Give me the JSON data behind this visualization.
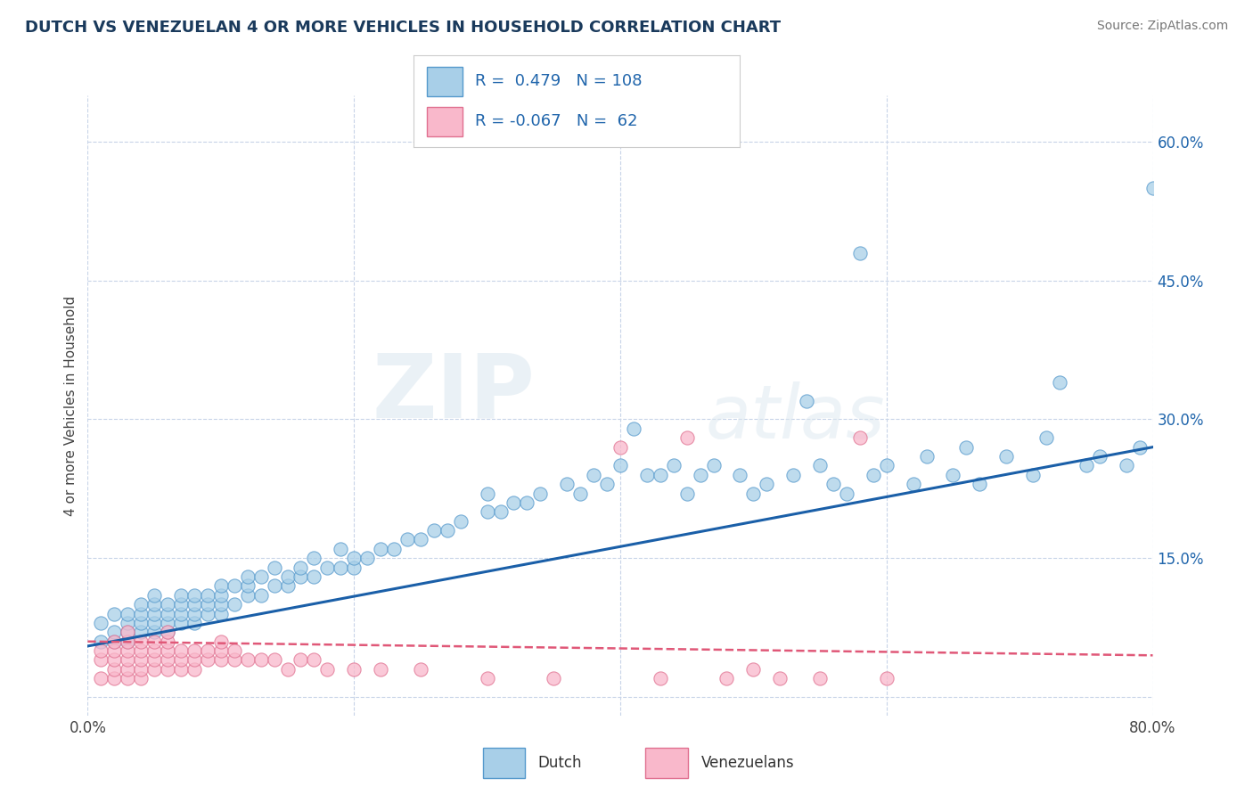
{
  "title": "DUTCH VS VENEZUELAN 4 OR MORE VEHICLES IN HOUSEHOLD CORRELATION CHART",
  "source": "Source: ZipAtlas.com",
  "ylabel": "4 or more Vehicles in Household",
  "xlim": [
    0.0,
    0.8
  ],
  "ylim": [
    -0.02,
    0.65
  ],
  "x_ticks": [
    0.0,
    0.2,
    0.4,
    0.6,
    0.8
  ],
  "x_tick_labels": [
    "0.0%",
    "",
    "",
    "",
    "80.0%"
  ],
  "y_ticks_right": [
    0.0,
    0.15,
    0.3,
    0.45,
    0.6
  ],
  "y_tick_labels_right": [
    "",
    "15.0%",
    "30.0%",
    "45.0%",
    "60.0%"
  ],
  "dutch_color": "#a8cfe8",
  "dutch_edge_color": "#5599cc",
  "venezuelan_color": "#f9b8cb",
  "venezuelan_edge_color": "#e07090",
  "dutch_line_color": "#1a5fa8",
  "venezuelan_line_color": "#e05878",
  "dutch_R": 0.479,
  "dutch_N": 108,
  "venezuelan_R": -0.067,
  "venezuelan_N": 62,
  "legend_R_color": "#2166ac",
  "watermark_zip": "ZIP",
  "watermark_atlas": "atlas",
  "background_color": "#ffffff",
  "grid_color": "#c8d4e8",
  "dutch_scatter_x": [
    0.01,
    0.01,
    0.02,
    0.02,
    0.02,
    0.03,
    0.03,
    0.03,
    0.03,
    0.04,
    0.04,
    0.04,
    0.04,
    0.05,
    0.05,
    0.05,
    0.05,
    0.05,
    0.06,
    0.06,
    0.06,
    0.06,
    0.07,
    0.07,
    0.07,
    0.07,
    0.08,
    0.08,
    0.08,
    0.08,
    0.09,
    0.09,
    0.09,
    0.1,
    0.1,
    0.1,
    0.1,
    0.11,
    0.11,
    0.12,
    0.12,
    0.12,
    0.13,
    0.13,
    0.14,
    0.14,
    0.15,
    0.15,
    0.16,
    0.16,
    0.17,
    0.17,
    0.18,
    0.19,
    0.19,
    0.2,
    0.2,
    0.21,
    0.22,
    0.23,
    0.24,
    0.25,
    0.26,
    0.27,
    0.28,
    0.3,
    0.3,
    0.31,
    0.32,
    0.33,
    0.34,
    0.36,
    0.37,
    0.38,
    0.39,
    0.4,
    0.42,
    0.43,
    0.44,
    0.45,
    0.46,
    0.47,
    0.49,
    0.5,
    0.51,
    0.53,
    0.55,
    0.56,
    0.57,
    0.59,
    0.6,
    0.62,
    0.63,
    0.65,
    0.66,
    0.67,
    0.69,
    0.71,
    0.72,
    0.73,
    0.75,
    0.76,
    0.78,
    0.79,
    0.8,
    0.41,
    0.54,
    0.58
  ],
  "dutch_scatter_y": [
    0.06,
    0.08,
    0.06,
    0.07,
    0.09,
    0.06,
    0.07,
    0.08,
    0.09,
    0.07,
    0.08,
    0.09,
    0.1,
    0.07,
    0.08,
    0.09,
    0.1,
    0.11,
    0.07,
    0.08,
    0.09,
    0.1,
    0.08,
    0.09,
    0.1,
    0.11,
    0.08,
    0.09,
    0.1,
    0.11,
    0.09,
    0.1,
    0.11,
    0.09,
    0.1,
    0.11,
    0.12,
    0.1,
    0.12,
    0.11,
    0.12,
    0.13,
    0.11,
    0.13,
    0.12,
    0.14,
    0.12,
    0.13,
    0.13,
    0.14,
    0.13,
    0.15,
    0.14,
    0.14,
    0.16,
    0.14,
    0.15,
    0.15,
    0.16,
    0.16,
    0.17,
    0.17,
    0.18,
    0.18,
    0.19,
    0.2,
    0.22,
    0.2,
    0.21,
    0.21,
    0.22,
    0.23,
    0.22,
    0.24,
    0.23,
    0.25,
    0.24,
    0.24,
    0.25,
    0.22,
    0.24,
    0.25,
    0.24,
    0.22,
    0.23,
    0.24,
    0.25,
    0.23,
    0.22,
    0.24,
    0.25,
    0.23,
    0.26,
    0.24,
    0.27,
    0.23,
    0.26,
    0.24,
    0.28,
    0.34,
    0.25,
    0.26,
    0.25,
    0.27,
    0.55,
    0.29,
    0.32,
    0.48
  ],
  "venezuelan_scatter_x": [
    0.01,
    0.01,
    0.01,
    0.02,
    0.02,
    0.02,
    0.02,
    0.02,
    0.03,
    0.03,
    0.03,
    0.03,
    0.03,
    0.03,
    0.04,
    0.04,
    0.04,
    0.04,
    0.04,
    0.05,
    0.05,
    0.05,
    0.05,
    0.06,
    0.06,
    0.06,
    0.06,
    0.06,
    0.07,
    0.07,
    0.07,
    0.08,
    0.08,
    0.08,
    0.09,
    0.09,
    0.1,
    0.1,
    0.1,
    0.11,
    0.11,
    0.12,
    0.13,
    0.14,
    0.15,
    0.16,
    0.17,
    0.18,
    0.2,
    0.22,
    0.25,
    0.3,
    0.35,
    0.43,
    0.48,
    0.5,
    0.52,
    0.55,
    0.58,
    0.6,
    0.4,
    0.45
  ],
  "venezuelan_scatter_y": [
    0.02,
    0.04,
    0.05,
    0.02,
    0.03,
    0.04,
    0.05,
    0.06,
    0.02,
    0.03,
    0.04,
    0.05,
    0.06,
    0.07,
    0.02,
    0.03,
    0.04,
    0.05,
    0.06,
    0.03,
    0.04,
    0.05,
    0.06,
    0.03,
    0.04,
    0.05,
    0.06,
    0.07,
    0.03,
    0.04,
    0.05,
    0.03,
    0.04,
    0.05,
    0.04,
    0.05,
    0.04,
    0.05,
    0.06,
    0.04,
    0.05,
    0.04,
    0.04,
    0.04,
    0.03,
    0.04,
    0.04,
    0.03,
    0.03,
    0.03,
    0.03,
    0.02,
    0.02,
    0.02,
    0.02,
    0.03,
    0.02,
    0.02,
    0.28,
    0.02,
    0.27,
    0.28
  ]
}
